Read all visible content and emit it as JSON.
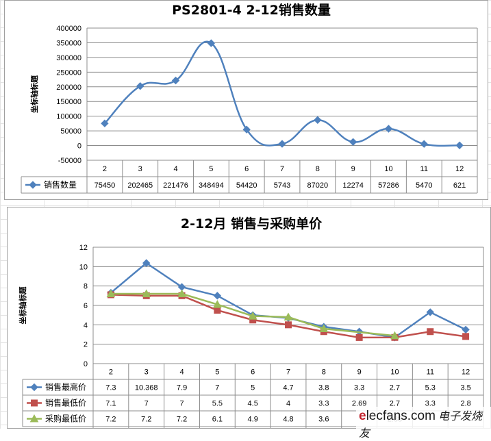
{
  "chart_data": [
    {
      "type": "line",
      "title": "PS2801-4  2-12销售数量",
      "ylabel": "坐标轴标题",
      "xlabel": "",
      "categories": [
        "2",
        "3",
        "4",
        "5",
        "6",
        "7",
        "8",
        "9",
        "10",
        "11",
        "12"
      ],
      "yticks": [
        "400000",
        "350000",
        "300000",
        "250000",
        "200000",
        "150000",
        "100000",
        "50000",
        "0",
        "-50000"
      ],
      "ylim": [
        -50000,
        400000
      ],
      "grid": true,
      "legend": "data-table",
      "series": [
        {
          "name": "销售数量",
          "color": "#4f81bd",
          "marker": "diamond",
          "values": [
            75450,
            202465,
            221476,
            348494,
            54420,
            5743,
            87020,
            12274,
            57286,
            5470,
            621
          ]
        }
      ]
    },
    {
      "type": "line",
      "title": "2-12月 销售与采购单价",
      "ylabel": "坐标轴标题",
      "xlabel": "",
      "categories": [
        "2",
        "3",
        "4",
        "5",
        "6",
        "7",
        "8",
        "9",
        "10",
        "11",
        "12"
      ],
      "yticks": [
        "12",
        "10",
        "8",
        "6",
        "4",
        "2",
        "0"
      ],
      "ylim": [
        0,
        12
      ],
      "grid": true,
      "legend": "data-table",
      "series": [
        {
          "name": "销售最高价",
          "color": "#4f81bd",
          "marker": "diamond",
          "values": [
            7.3,
            10.368,
            7.9,
            7,
            5,
            4.7,
            3.8,
            3.3,
            2.7,
            5.3,
            3.5
          ]
        },
        {
          "name": "销售最低价",
          "color": "#c0504d",
          "marker": "square",
          "values": [
            7.1,
            7,
            7,
            5.5,
            4.5,
            4,
            3.3,
            2.69,
            2.7,
            3.3,
            2.8
          ]
        },
        {
          "name": "采购最低价",
          "color": "#9bbb59",
          "marker": "triangle",
          "values": [
            7.2,
            7.2,
            7.2,
            6.1,
            4.9,
            4.8,
            3.6,
            null,
            2.88,
            null,
            null
          ],
          "labels": [
            "7.2",
            "7.2",
            "7.2",
            "6.1",
            "4.9",
            "4.8",
            "3.6",
            "",
            "2.88",
            "",
            ""
          ]
        }
      ]
    }
  ],
  "watermark": {
    "brand_e": "e",
    "brand_rest": "lecfans",
    "domain": ".com",
    "cn": "电子发烧友"
  }
}
